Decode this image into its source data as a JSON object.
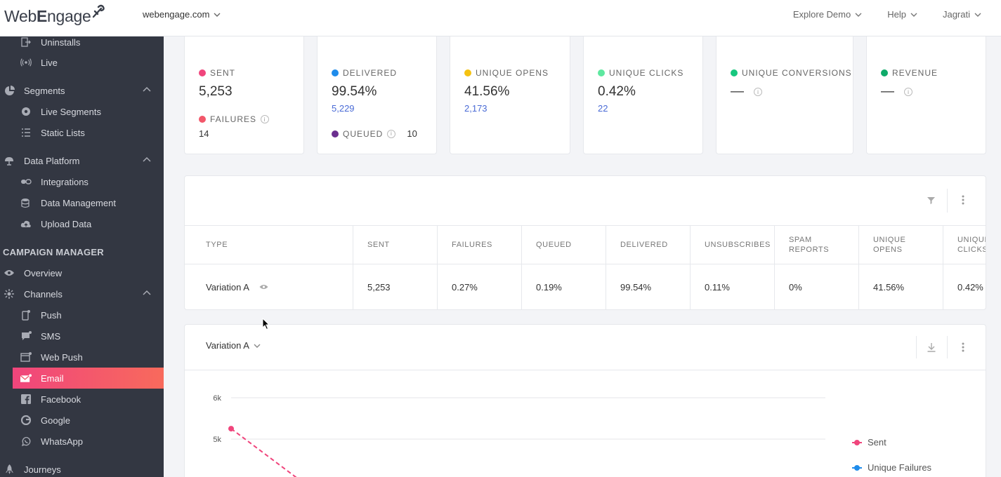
{
  "brand": {
    "logo_prefix": "Web",
    "logo_suffix": "ngage"
  },
  "account": {
    "name": "webengage.com"
  },
  "topnav": {
    "explore": "Explore Demo",
    "help": "Help",
    "user": "Jagrati"
  },
  "sidebar": {
    "uninstalls": "Uninstalls",
    "live": "Live",
    "segments": "Segments",
    "live_segments": "Live Segments",
    "static_lists": "Static Lists",
    "data_platform": "Data Platform",
    "integrations": "Integrations",
    "data_management": "Data Management",
    "upload_data": "Upload Data",
    "campaign_manager": "CAMPAIGN MANAGER",
    "overview": "Overview",
    "channels": "Channels",
    "push": "Push",
    "sms": "SMS",
    "web_push": "Web Push",
    "email": "Email",
    "facebook": "Facebook",
    "google": "Google",
    "whatsapp": "WhatsApp",
    "journeys": "Journeys"
  },
  "stats": {
    "sent": {
      "label": "SENT",
      "value": "5,253",
      "color": "#f0457c"
    },
    "failures": {
      "label": "FAILURES",
      "value": "14",
      "color": "#f2576a"
    },
    "delivered": {
      "label": "DELIVERED",
      "value": "99.54%",
      "sub": "5,229",
      "color": "#1f8ceb"
    },
    "queued": {
      "label": "QUEUED",
      "value": "10",
      "color": "#6b2f8f"
    },
    "unique_opens": {
      "label": "UNIQUE OPENS",
      "value": "41.56%",
      "sub": "2,173",
      "color": "#f5c211"
    },
    "unique_clicks": {
      "label": "UNIQUE CLICKS",
      "value": "0.42%",
      "sub": "22",
      "color": "#5ee8a0"
    },
    "unique_conversions": {
      "label": "UNIQUE CONVERSIONS",
      "value": "—",
      "color": "#17c77e"
    },
    "revenue": {
      "label": "REVENUE",
      "value": "—",
      "color": "#0fab6a"
    }
  },
  "table": {
    "headers": {
      "type": "TYPE",
      "sent": "SENT",
      "failures": "FAILURES",
      "queued": "QUEUED",
      "delivered": "DELIVERED",
      "unsubscribes": "UNSUBSCRIBES",
      "spam_1": "SPAM",
      "spam_2": "REPORTS",
      "opens_1": "UNIQUE",
      "opens_2": "OPENS",
      "clicks_1": "UNIQUE",
      "clicks_2": "CLICKS"
    },
    "row": {
      "type": "Variation A",
      "sent": "5,253",
      "failures": "0.27%",
      "queued": "0.19%",
      "delivered": "99.54%",
      "unsubscribes": "0.11%",
      "spam_reports": "0%",
      "unique_opens": "41.56%",
      "unique_clicks": "0.42%"
    }
  },
  "chart": {
    "variation_selector": "Variation A"
  },
  "chart_data": {
    "type": "line",
    "yticks": [
      "6k",
      "5k"
    ],
    "series": [
      {
        "name": "Sent",
        "color": "#f0457c",
        "points": [
          [
            0,
            5253
          ]
        ]
      },
      {
        "name": "Unique Failures",
        "color": "#1f8ceb",
        "points": []
      }
    ],
    "ylim": [
      4000,
      6000
    ]
  }
}
